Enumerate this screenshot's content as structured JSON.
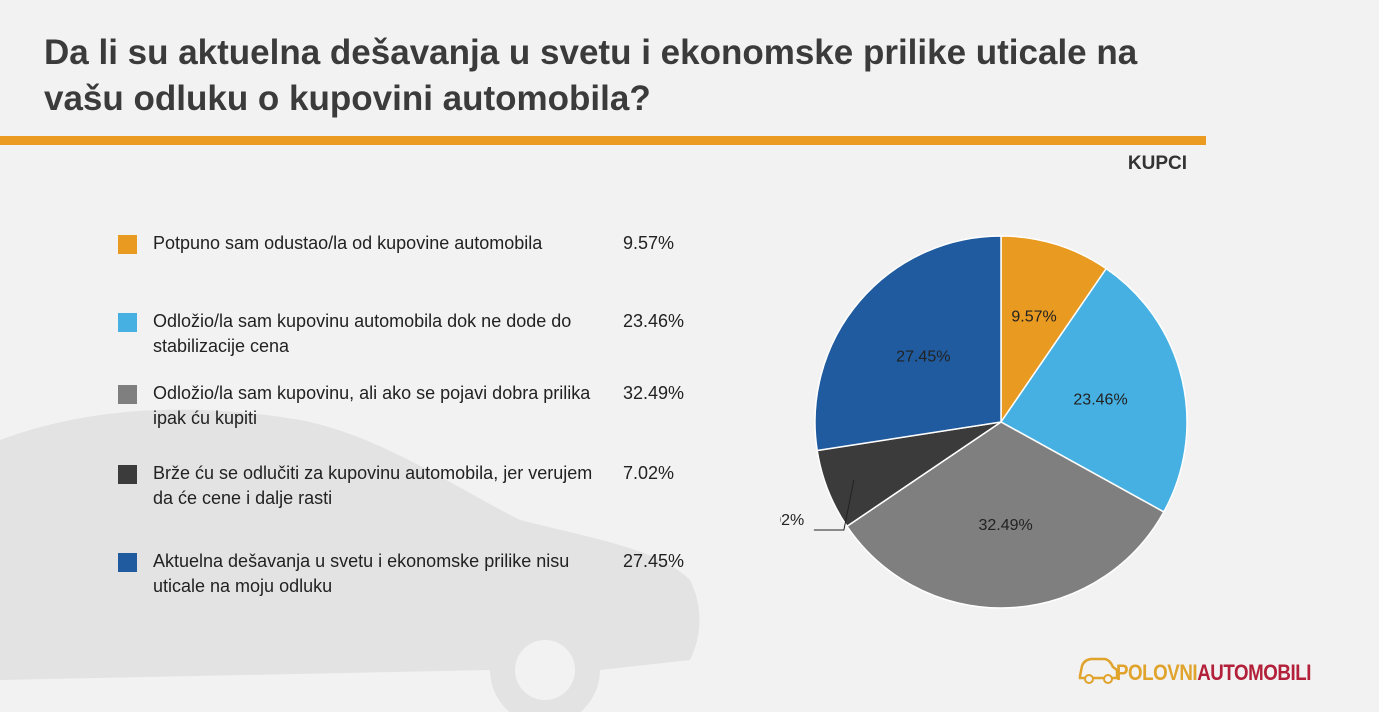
{
  "title": "Da li su aktuelna dešavanja u svetu i ekonomske prilike uticale na vašu odluku o kupovini automobila?",
  "group_label": "KUPCI",
  "logo": {
    "part1": "POLOVNI",
    "part2": "AUTOMOBILI",
    "colors": [
      "#e0a32c",
      "#b3203a"
    ]
  },
  "chart_data": {
    "type": "pie",
    "title": "Da li su aktuelna dešavanja u svetu i ekonomske prilike uticale na vašu odluku o kupovini automobila?",
    "start_angle": "12 o'clock",
    "direction": "clockwise",
    "legend_placement": "left",
    "slices": [
      {
        "label": "Potpuno sam odustao/la od kupovine automobila",
        "value": 9.57,
        "display": "9.57%",
        "color": "#e99a20"
      },
      {
        "label": "Odložio/la sam kupovinu automobila dok ne dode do stabilizacije cena",
        "value": 23.46,
        "display": "23.46%",
        "color": "#46b0e2"
      },
      {
        "label": "Odložio/la sam kupovinu, ali ako se pojavi dobra prilika ipak ću kupiti",
        "value": 32.49,
        "display": "32.49%",
        "color": "#7f7f7f"
      },
      {
        "label": "Brže ću se odlučiti za kupovinu automobila, jer verujem da će cene i dalje rasti",
        "value": 7.02,
        "display": "7.02%",
        "color": "#3b3b3b"
      },
      {
        "label": "Aktuelna dešavanja u svetu i ekonomske prilike nisu uticale na moju odluku",
        "value": 27.45,
        "display": "27.45%",
        "color": "#1f5b9e"
      }
    ]
  }
}
